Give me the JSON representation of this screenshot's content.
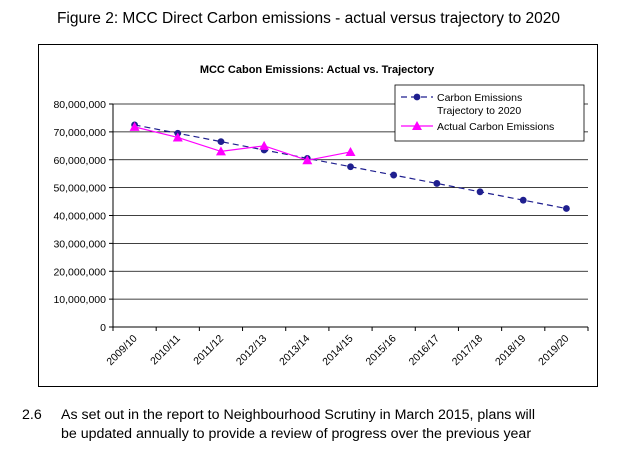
{
  "figure_caption": "Figure 2: MCC Direct Carbon emissions - actual versus trajectory to 2020",
  "paragraph": {
    "number": "2.6",
    "line1": "As set out in the report to Neighbourhood Scrutiny in March 2015, plans will",
    "line2": "be updated annually to provide a review of progress over the previous year"
  },
  "chart_data": {
    "type": "line",
    "title": "MCC Cabon Emissions: Actual vs. Trajectory",
    "xlabel": "",
    "ylabel": "",
    "ylim": [
      0,
      80000000
    ],
    "yticks": [
      0,
      10000000,
      20000000,
      30000000,
      40000000,
      50000000,
      60000000,
      70000000,
      80000000
    ],
    "ytick_labels": [
      "0",
      "10,000,000",
      "20,000,000",
      "30,000,000",
      "40,000,000",
      "50,000,000",
      "60,000,000",
      "70,000,000",
      "80,000,000"
    ],
    "grid": true,
    "legend_position": "top-right",
    "categories": [
      "2009/10",
      "2010/11",
      "2011/12",
      "2012/13",
      "2013/14",
      "2014/15",
      "2015/16",
      "2016/17",
      "2017/18",
      "2018/19",
      "2019/20"
    ],
    "series": [
      {
        "name": "Carbon Emissions Trajectory to 2020",
        "legend_lines": [
          "Carbon Emissions",
          "Trajectory to 2020"
        ],
        "color": "#1f1f8f",
        "style": "dashed",
        "marker": "circle",
        "values": [
          72500000,
          69500000,
          66500000,
          63500000,
          60500000,
          57500000,
          54500000,
          51500000,
          48500000,
          45500000,
          42500000
        ]
      },
      {
        "name": "Actual Carbon Emissions",
        "legend_lines": [
          "Actual Carbon Emissions"
        ],
        "color": "#ff00ff",
        "style": "solid",
        "marker": "triangle",
        "values": [
          71800000,
          68000000,
          63000000,
          65000000,
          59800000,
          62800000,
          null,
          null,
          null,
          null,
          null
        ]
      }
    ]
  }
}
